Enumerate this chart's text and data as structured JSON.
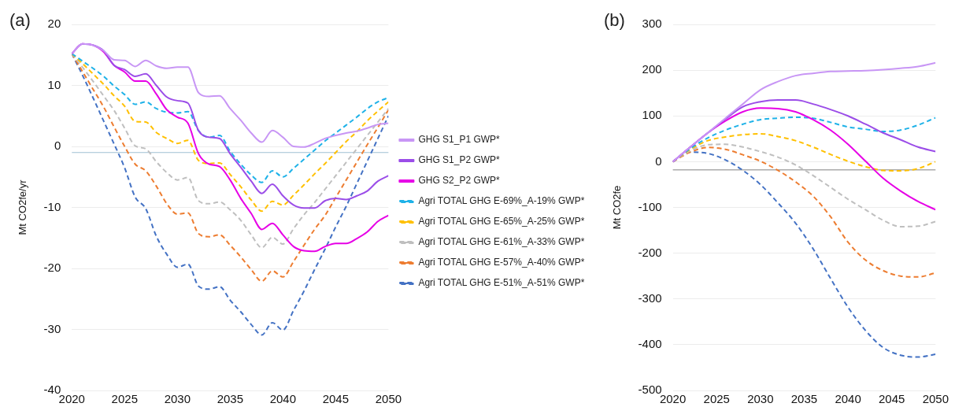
{
  "chart_data": [
    {
      "type": "line",
      "annotations": [
        "(a)"
      ],
      "ylabel": "Mt CO2fe/yr",
      "x": [
        2020,
        2021,
        2022,
        2023,
        2024,
        2025,
        2026,
        2027,
        2028,
        2029,
        2030,
        2031,
        2032,
        2033,
        2034,
        2035,
        2036,
        2037,
        2038,
        2039,
        2040,
        2041,
        2042,
        2043,
        2044,
        2045,
        2046,
        2047,
        2048,
        2049,
        2050
      ],
      "xlim": [
        2020,
        2050
      ],
      "xticks": [
        2020,
        2025,
        2030,
        2035,
        2040,
        2045,
        2050
      ],
      "ylim": [
        -40,
        20
      ],
      "yticks": [
        -40,
        -30,
        -20,
        -10,
        0,
        10,
        20
      ],
      "grid": "y",
      "legend": "right",
      "marker": "none",
      "ref_lines": [
        {
          "axis": "y",
          "value": -1,
          "color": "#9fbfd3"
        }
      ],
      "series": [
        {
          "name": "GHG S1_P1 GWP*",
          "color": "#c896f5",
          "line_style": "solid",
          "values": [
            15.2,
            16.8,
            16.6,
            15.7,
            14.2,
            14.1,
            13.1,
            14.1,
            13.2,
            12.8,
            13,
            13,
            8.8,
            8.2,
            8.3,
            6.2,
            4.3,
            2.2,
            0.7,
            2.6,
            1.5,
            0,
            -0.1,
            0.5,
            1.3,
            1.8,
            2.2,
            2.5,
            3,
            3.6,
            3.8
          ]
        },
        {
          "name": "GHG S1_P2 GWP*",
          "color": "#9b4de8",
          "line_style": "solid",
          "values": [
            15.2,
            16.8,
            16.6,
            15.7,
            13.3,
            12.6,
            11.5,
            11.9,
            10,
            8.1,
            7.5,
            7.1,
            2.6,
            1.5,
            1.3,
            -1.2,
            -3.4,
            -5.7,
            -7.7,
            -6.2,
            -8.1,
            -9.6,
            -10.1,
            -10.1,
            -8.9,
            -8.5,
            -8.7,
            -8.1,
            -7.3,
            -5.7,
            -4.8
          ]
        },
        {
          "name": "GHG S2_P2 GWP*",
          "color": "#e600e6",
          "line_style": "solid",
          "values": [
            15.2,
            16.8,
            16.6,
            15.5,
            13.3,
            12.2,
            10.7,
            10.7,
            8.6,
            6,
            4.8,
            3.8,
            -1.2,
            -2.9,
            -3.3,
            -5.5,
            -8.5,
            -11,
            -13.6,
            -12.6,
            -14.5,
            -16.4,
            -17.1,
            -17.2,
            -16.4,
            -15.9,
            -15.9,
            -15.1,
            -14,
            -12.3,
            -11.3
          ]
        },
        {
          "name": "Agri TOTAL GHG E-69%_A-19% GWP*",
          "color": "#1fb2e8",
          "line_style": "dashed",
          "values": [
            15.2,
            14,
            12.8,
            11.5,
            9.9,
            8.5,
            6.9,
            7.3,
            6.2,
            5.6,
            5.5,
            5.7,
            2.6,
            1.5,
            1.8,
            -0.8,
            -2.9,
            -4.7,
            -5.9,
            -4,
            -5,
            -3.6,
            -2.1,
            -0.6,
            0.9,
            2.2,
            3.5,
            4.8,
            6.2,
            7.3,
            8
          ]
        },
        {
          "name": "Agri TOTAL GHG E-65%_A-25% GWP*",
          "color": "#ffc000",
          "line_style": "dashed",
          "values": [
            15.2,
            13.6,
            11.9,
            10.2,
            8.3,
            6.6,
            4.1,
            4,
            2.3,
            1.3,
            0.5,
            1,
            -2.3,
            -2.8,
            -2.7,
            -4.6,
            -6.6,
            -8.8,
            -10.6,
            -9,
            -9.6,
            -8,
            -6.3,
            -4.5,
            -2.8,
            -1,
            0.8,
            2.4,
            4.2,
            5.8,
            7.3
          ]
        },
        {
          "name": "Agri TOTAL GHG E-61%_A-33% GWP*",
          "color": "#bfbfbf",
          "line_style": "dashed",
          "values": [
            15.2,
            13,
            10.7,
            8.3,
            5.9,
            3,
            0.1,
            -0.4,
            -2.5,
            -4.3,
            -5.5,
            -5.1,
            -8.9,
            -9.4,
            -9.1,
            -10.4,
            -12.1,
            -14.5,
            -16.6,
            -14.9,
            -16,
            -13.5,
            -11.2,
            -9.2,
            -7,
            -4.8,
            -2.6,
            -0.4,
            1.8,
            4,
            6.2
          ]
        },
        {
          "name": "Agri TOTAL GHG E-57%_A-40% GWP*",
          "color": "#ed7d31",
          "line_style": "dashed",
          "values": [
            15.2,
            12.3,
            9.4,
            6.5,
            3.2,
            0,
            -2.9,
            -4,
            -6.5,
            -9.4,
            -11.1,
            -10.9,
            -14.3,
            -14.8,
            -14.5,
            -16.2,
            -18.1,
            -20.2,
            -22.1,
            -20.4,
            -21.4,
            -18.9,
            -16.2,
            -13.6,
            -11.3,
            -8.4,
            -5.5,
            -2.6,
            0.3,
            3.1,
            6
          ]
        },
        {
          "name": "Agri TOTAL GHG E-51%_A-51% GWP*",
          "color": "#4472c4",
          "line_style": "dashed",
          "values": [
            15.2,
            11.7,
            8,
            4.2,
            0.4,
            -3.5,
            -8.3,
            -10.2,
            -14.7,
            -17.7,
            -19.8,
            -19.3,
            -22.9,
            -23.4,
            -23,
            -25.2,
            -27.1,
            -29.2,
            -30.9,
            -28.9,
            -30.1,
            -26.9,
            -23.7,
            -20.2,
            -16.8,
            -13.2,
            -9.8,
            -6.1,
            -2.4,
            1.3,
            5
          ]
        }
      ]
    },
    {
      "type": "line",
      "annotations": [
        "(b)"
      ],
      "ylabel": "Mt CO2fe",
      "x": [
        2020,
        2022,
        2024,
        2026,
        2028,
        2030,
        2032,
        2034,
        2036,
        2038,
        2040,
        2042,
        2044,
        2046,
        2048,
        2050
      ],
      "xlim": [
        2020,
        2050
      ],
      "xticks": [
        2020,
        2025,
        2030,
        2035,
        2040,
        2045,
        2050
      ],
      "ylim": [
        -500,
        300
      ],
      "yticks": [
        -500,
        -400,
        -300,
        -200,
        -100,
        0,
        100,
        200,
        300
      ],
      "grid": "y",
      "legend": false,
      "marker": "none",
      "ref_lines": [
        {
          "axis": "y",
          "value": -18,
          "color": "#808080"
        }
      ],
      "series": [
        {
          "color": "#c896f5",
          "line_style": "solid",
          "values": [
            0,
            32,
            63,
            95,
            126,
            157,
            175,
            188,
            193,
            197,
            198,
            199,
            201,
            204,
            208,
            216
          ]
        },
        {
          "color": "#9b4de8",
          "line_style": "solid",
          "values": [
            0,
            32,
            63,
            93,
            120,
            131,
            135,
            135,
            126,
            114,
            100,
            82,
            63,
            48,
            32,
            22
          ]
        },
        {
          "color": "#e600e6",
          "line_style": "solid",
          "values": [
            0,
            32,
            63,
            89,
            109,
            117,
            116,
            109,
            92,
            69,
            38,
            1,
            -36,
            -64,
            -87,
            -105
          ]
        },
        {
          "color": "#1fb2e8",
          "line_style": "dashed",
          "values": [
            0,
            29,
            52,
            69,
            82,
            92,
            95,
            97,
            95,
            86,
            76,
            71,
            66,
            69,
            80,
            96
          ]
        },
        {
          "color": "#ffc000",
          "line_style": "dashed",
          "values": [
            0,
            27,
            46,
            54,
            59,
            61,
            55,
            46,
            32,
            16,
            1,
            -11,
            -19,
            -20,
            -15,
            0
          ]
        },
        {
          "color": "#bfbfbf",
          "line_style": "dashed",
          "values": [
            0,
            24,
            37,
            38,
            32,
            22,
            10,
            -7,
            -30,
            -56,
            -82,
            -105,
            -128,
            -142,
            -141,
            -131
          ]
        },
        {
          "color": "#ed7d31",
          "line_style": "dashed",
          "values": [
            0,
            21,
            31,
            27,
            15,
            1,
            -19,
            -44,
            -75,
            -120,
            -176,
            -215,
            -238,
            -250,
            -252,
            -243
          ]
        },
        {
          "color": "#4472c4",
          "line_style": "dashed",
          "values": [
            0,
            21,
            18,
            4,
            -19,
            -50,
            -90,
            -134,
            -190,
            -255,
            -318,
            -369,
            -406,
            -423,
            -427,
            -421
          ]
        }
      ]
    }
  ]
}
